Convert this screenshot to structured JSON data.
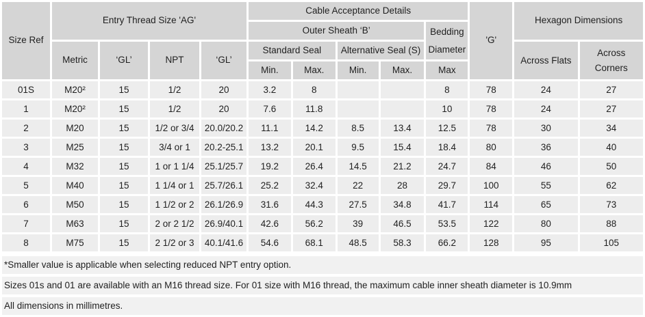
{
  "header": {
    "size_ref": "Size Ref",
    "entry_thread": "Entry Thread Size 'AG'",
    "metric": "Metric",
    "gl_metric": "‘GL’",
    "npt": "NPT",
    "gl_npt": "‘GL’",
    "cable_acceptance": "Cable Acceptance Details",
    "outer_sheath": "Outer Sheath ‘B’",
    "standard_seal": "Standard Seal",
    "alternative_seal": "Alternative Seal (S)",
    "bedding_diameter": "Bedding Diameter",
    "bedding_max": "Max",
    "std_min": "Min.",
    "std_max": "Max.",
    "alt_min": "Min.",
    "alt_max": "Max.",
    "g": "'G'",
    "hexagon": "Hexagon Dimensions",
    "across_flats": "Across Flats",
    "across_corners": "Across Corners"
  },
  "table": {
    "column_keys": [
      "size_ref",
      "metric",
      "gl_metric",
      "npt",
      "gl_npt",
      "std_seal_min",
      "std_seal_max",
      "alt_seal_min",
      "alt_seal_max",
      "bedding_max",
      "g",
      "across_flats",
      "across_corners"
    ],
    "rows": [
      [
        "01S",
        "M20²",
        "15",
        "1/2",
        "20",
        "3.2",
        "8",
        "",
        "",
        "8",
        "78",
        "24",
        "27"
      ],
      [
        "1",
        "M20²",
        "15",
        "1/2",
        "20",
        "7.6",
        "11.8",
        "",
        "",
        "10",
        "78",
        "24",
        "27"
      ],
      [
        "2",
        "M20",
        "15",
        "1/2 or 3/4",
        "20.0/20.2",
        "11.1",
        "14.2",
        "8.5",
        "13.4",
        "12.5",
        "78",
        "30",
        "34"
      ],
      [
        "3",
        "M25",
        "15",
        "3/4 or 1",
        "20.2-25.1",
        "13.2",
        "20.1",
        "9.5",
        "15.4",
        "18.4",
        "80",
        "36",
        "40"
      ],
      [
        "4",
        "M32",
        "15",
        "1 or 1 1/4",
        "25.1/25.7",
        "19.2",
        "26.4",
        "14.5",
        "21.2",
        "24.7",
        "84",
        "46",
        "50"
      ],
      [
        "5",
        "M40",
        "15",
        "1 1/4 or 1",
        "25.7/26.1",
        "25.2",
        "32.4",
        "22",
        "28",
        "29.7",
        "100",
        "55",
        "62"
      ],
      [
        "6",
        "M50",
        "15",
        "1 1/2 or 2",
        "26.1/26.9",
        "31.6",
        "44.3",
        "27.5",
        "34.8",
        "41.7",
        "114",
        "65",
        "73"
      ],
      [
        "7",
        "M63",
        "15",
        "2 or 2 1/2",
        "26.9/40.1",
        "42.6",
        "56.2",
        "39",
        "46.5",
        "53.5",
        "122",
        "80",
        "88"
      ],
      [
        "8",
        "M75",
        "15",
        "2 1/2 or 3",
        "40.1/41.6",
        "54.6",
        "68.1",
        "48.5",
        "58.3",
        "66.2",
        "128",
        "95",
        "105"
      ]
    ]
  },
  "notes": [
    "*Smaller value is applicable when selecting reduced NPT entry option.",
    "Sizes 01s and 01 are available with an M16 thread size. For 01 size with M16 thread, the maximum cable inner sheath diameter is 10.9mm",
    "All dimensions in millimetres."
  ],
  "colors": {
    "header_cell": "#d5d5d5",
    "data_cell": "#ededed",
    "note_bar": "#f1f1f1",
    "gap": "#ffffff",
    "text": "#1f1f1f"
  }
}
